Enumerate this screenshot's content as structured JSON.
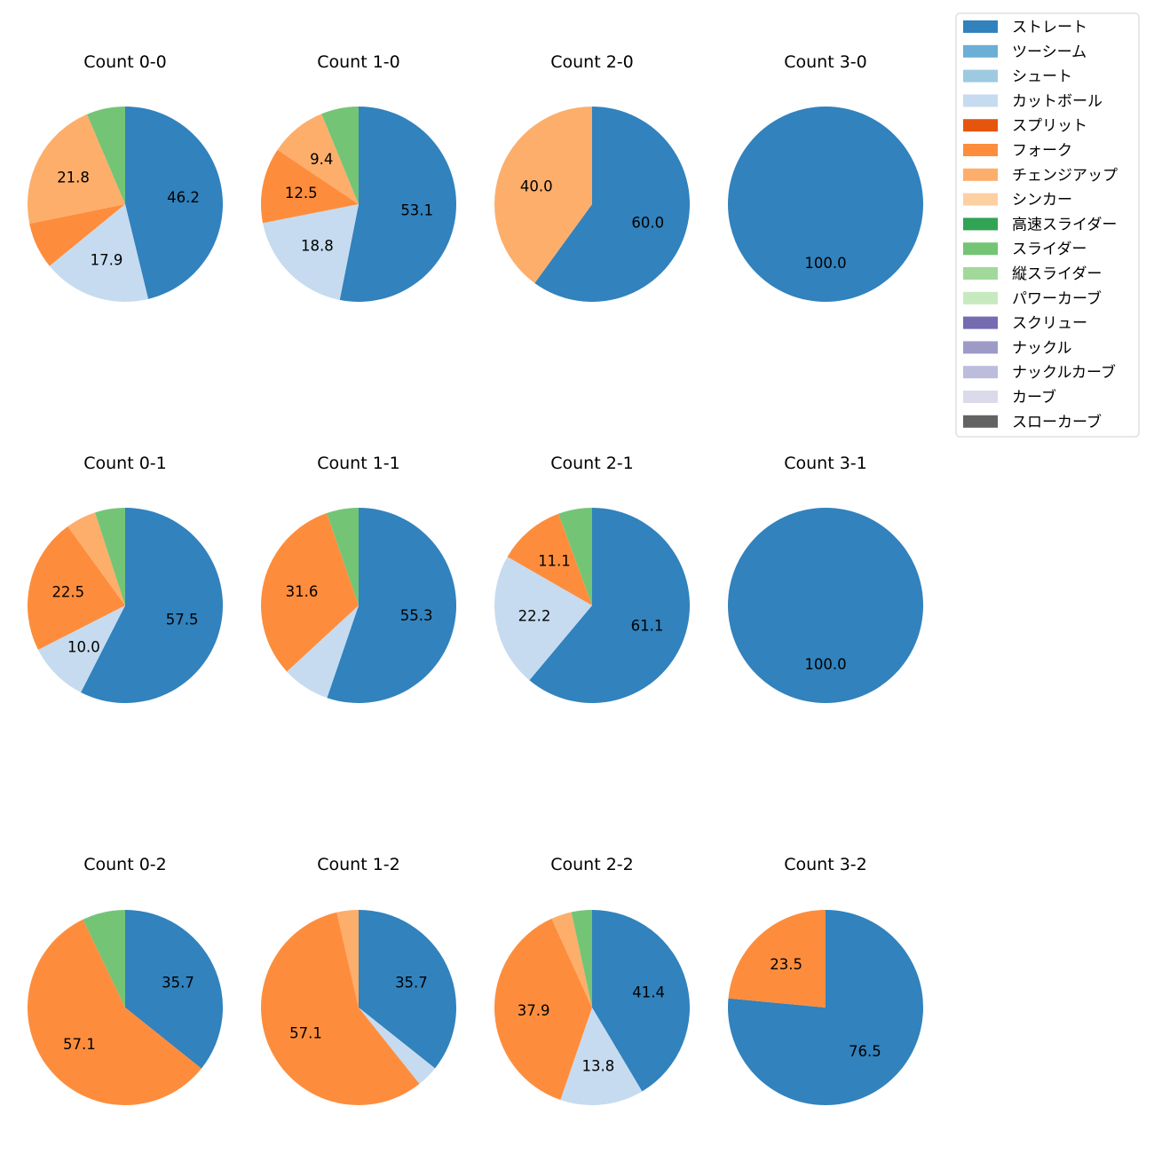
{
  "chart_data": {
    "type": "pie",
    "legend": {
      "placement": "top-right",
      "entries": [
        {
          "name": "ストレート",
          "color": "#3182bd"
        },
        {
          "name": "ツーシーム",
          "color": "#6baed6"
        },
        {
          "name": "シュート",
          "color": "#9ecae1"
        },
        {
          "name": "カットボール",
          "color": "#c6dbef"
        },
        {
          "name": "スプリット",
          "color": "#e6550d"
        },
        {
          "name": "フォーク",
          "color": "#fd8d3c"
        },
        {
          "name": "チェンジアップ",
          "color": "#fdae6b"
        },
        {
          "name": "シンカー",
          "color": "#fdd0a2"
        },
        {
          "name": "高速スライダー",
          "color": "#31a354"
        },
        {
          "name": "スライダー",
          "color": "#74c476"
        },
        {
          "name": "縦スライダー",
          "color": "#a1d99b"
        },
        {
          "name": "パワーカーブ",
          "color": "#c7e9c0"
        },
        {
          "name": "スクリュー",
          "color": "#756bb1"
        },
        {
          "name": "ナックル",
          "color": "#9e9ac8"
        },
        {
          "name": "ナックルカーブ",
          "color": "#bcbddc"
        },
        {
          "name": "カーブ",
          "color": "#dadaeb"
        },
        {
          "name": "スローカーブ",
          "color": "#636363"
        }
      ]
    },
    "charts": [
      {
        "title": "Count 0-0",
        "slices": [
          {
            "category": "ストレート",
            "value": 46.2,
            "label": "46.2"
          },
          {
            "category": "カットボール",
            "value": 17.9,
            "label": "17.9"
          },
          {
            "category": "フォーク",
            "value": 7.7,
            "label": ""
          },
          {
            "category": "チェンジアップ",
            "value": 21.8,
            "label": "21.8"
          },
          {
            "category": "スライダー",
            "value": 6.4,
            "label": ""
          }
        ]
      },
      {
        "title": "Count 1-0",
        "slices": [
          {
            "category": "ストレート",
            "value": 53.1,
            "label": "53.1"
          },
          {
            "category": "カットボール",
            "value": 18.8,
            "label": "18.8"
          },
          {
            "category": "フォーク",
            "value": 12.5,
            "label": "12.5"
          },
          {
            "category": "チェンジアップ",
            "value": 9.4,
            "label": "9.4"
          },
          {
            "category": "スライダー",
            "value": 6.2,
            "label": ""
          }
        ]
      },
      {
        "title": "Count 2-0",
        "slices": [
          {
            "category": "ストレート",
            "value": 60.0,
            "label": "60.0"
          },
          {
            "category": "チェンジアップ",
            "value": 40.0,
            "label": "40.0"
          }
        ]
      },
      {
        "title": "Count 3-0",
        "slices": [
          {
            "category": "ストレート",
            "value": 100.0,
            "label": "100.0"
          }
        ]
      },
      {
        "title": "Count 0-1",
        "slices": [
          {
            "category": "ストレート",
            "value": 57.5,
            "label": "57.5"
          },
          {
            "category": "カットボール",
            "value": 10.0,
            "label": "10.0"
          },
          {
            "category": "フォーク",
            "value": 22.5,
            "label": "22.5"
          },
          {
            "category": "チェンジアップ",
            "value": 5.0,
            "label": ""
          },
          {
            "category": "スライダー",
            "value": 5.0,
            "label": ""
          }
        ]
      },
      {
        "title": "Count 1-1",
        "slices": [
          {
            "category": "ストレート",
            "value": 55.3,
            "label": "55.3"
          },
          {
            "category": "カットボール",
            "value": 7.9,
            "label": ""
          },
          {
            "category": "フォーク",
            "value": 31.6,
            "label": "31.6"
          },
          {
            "category": "スライダー",
            "value": 5.3,
            "label": ""
          }
        ]
      },
      {
        "title": "Count 2-1",
        "slices": [
          {
            "category": "ストレート",
            "value": 61.1,
            "label": "61.1"
          },
          {
            "category": "カットボール",
            "value": 22.2,
            "label": "22.2"
          },
          {
            "category": "フォーク",
            "value": 11.1,
            "label": "11.1"
          },
          {
            "category": "スライダー",
            "value": 5.6,
            "label": ""
          }
        ]
      },
      {
        "title": "Count 3-1",
        "slices": [
          {
            "category": "ストレート",
            "value": 100.0,
            "label": "100.0"
          }
        ]
      },
      {
        "title": "Count 0-2",
        "slices": [
          {
            "category": "ストレート",
            "value": 35.7,
            "label": "35.7"
          },
          {
            "category": "フォーク",
            "value": 57.1,
            "label": "57.1"
          },
          {
            "category": "スライダー",
            "value": 7.1,
            "label": ""
          }
        ]
      },
      {
        "title": "Count 1-2",
        "slices": [
          {
            "category": "ストレート",
            "value": 35.7,
            "label": "35.7"
          },
          {
            "category": "カットボール",
            "value": 3.6,
            "label": ""
          },
          {
            "category": "フォーク",
            "value": 57.1,
            "label": "57.1"
          },
          {
            "category": "チェンジアップ",
            "value": 3.6,
            "label": ""
          }
        ]
      },
      {
        "title": "Count 2-2",
        "slices": [
          {
            "category": "ストレート",
            "value": 41.4,
            "label": "41.4"
          },
          {
            "category": "カットボール",
            "value": 13.8,
            "label": "13.8"
          },
          {
            "category": "フォーク",
            "value": 37.9,
            "label": "37.9"
          },
          {
            "category": "チェンジアップ",
            "value": 3.4,
            "label": ""
          },
          {
            "category": "スライダー",
            "value": 3.4,
            "label": ""
          }
        ]
      },
      {
        "title": "Count 3-2",
        "slices": [
          {
            "category": "ストレート",
            "value": 76.5,
            "label": "76.5"
          },
          {
            "category": "フォーク",
            "value": 23.5,
            "label": "23.5"
          }
        ]
      }
    ]
  }
}
